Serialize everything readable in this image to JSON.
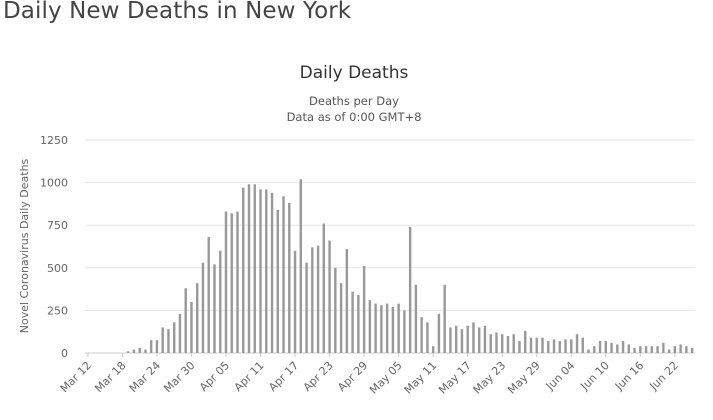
{
  "page": {
    "heading": "Daily New Deaths in New York"
  },
  "chart_data": {
    "type": "bar",
    "title": "Daily Deaths",
    "subtitle_lines": [
      "Deaths per Day",
      "Data as of 0:00 GMT+8"
    ],
    "xlabel": "",
    "ylabel": "Novel Coronavirus Daily Deaths",
    "ylim": [
      0,
      1250
    ],
    "yticks": [
      0,
      250,
      500,
      750,
      1000,
      1250
    ],
    "grid": true,
    "legend": "none",
    "bar_color": "#999999",
    "start_date": "2020-03-12",
    "tick_labels": [
      "Mar 12",
      "Mar 18",
      "Mar 24",
      "Mar 30",
      "Apr 05",
      "Apr 11",
      "Apr 17",
      "Apr 23",
      "Apr 29",
      "May 05",
      "May 11",
      "May 17",
      "May 23",
      "May 29",
      "Jun 04",
      "Jun 10",
      "Jun 16",
      "Jun 22"
    ],
    "categories": [
      "Mar 12",
      "Mar 13",
      "Mar 14",
      "Mar 15",
      "Mar 16",
      "Mar 17",
      "Mar 18",
      "Mar 19",
      "Mar 20",
      "Mar 21",
      "Mar 22",
      "Mar 23",
      "Mar 24",
      "Mar 25",
      "Mar 26",
      "Mar 27",
      "Mar 28",
      "Mar 29",
      "Mar 30",
      "Mar 31",
      "Apr 01",
      "Apr 02",
      "Apr 03",
      "Apr 04",
      "Apr 05",
      "Apr 06",
      "Apr 07",
      "Apr 08",
      "Apr 09",
      "Apr 10",
      "Apr 11",
      "Apr 12",
      "Apr 13",
      "Apr 14",
      "Apr 15",
      "Apr 16",
      "Apr 17",
      "Apr 18",
      "Apr 19",
      "Apr 20",
      "Apr 21",
      "Apr 22",
      "Apr 23",
      "Apr 24",
      "Apr 25",
      "Apr 26",
      "Apr 27",
      "Apr 28",
      "Apr 29",
      "Apr 30",
      "May 01",
      "May 02",
      "May 03",
      "May 04",
      "May 05",
      "May 06",
      "May 07",
      "May 08",
      "May 09",
      "May 10",
      "May 11",
      "May 12",
      "May 13",
      "May 14",
      "May 15",
      "May 16",
      "May 17",
      "May 18",
      "May 19",
      "May 20",
      "May 21",
      "May 22",
      "May 23",
      "May 24",
      "May 25",
      "May 26",
      "May 27",
      "May 28",
      "May 29",
      "May 30",
      "May 31",
      "Jun 01",
      "Jun 02",
      "Jun 03",
      "Jun 04",
      "Jun 05",
      "Jun 06",
      "Jun 07",
      "Jun 08",
      "Jun 09",
      "Jun 10",
      "Jun 11",
      "Jun 12",
      "Jun 13",
      "Jun 14",
      "Jun 15",
      "Jun 16",
      "Jun 17",
      "Jun 18",
      "Jun 19",
      "Jun 20",
      "Jun 21",
      "Jun 22",
      "Jun 23",
      "Jun 24",
      "Jun 25"
    ],
    "values": [
      0,
      0,
      0,
      0,
      0,
      0,
      0,
      10,
      20,
      30,
      20,
      75,
      75,
      150,
      140,
      180,
      230,
      380,
      300,
      410,
      530,
      680,
      520,
      600,
      830,
      820,
      830,
      970,
      990,
      990,
      960,
      960,
      940,
      840,
      920,
      880,
      600,
      1020,
      530,
      620,
      630,
      760,
      660,
      500,
      410,
      610,
      360,
      340,
      510,
      310,
      290,
      280,
      290,
      270,
      290,
      250,
      740,
      400,
      210,
      180,
      40,
      230,
      400,
      150,
      160,
      140,
      160,
      180,
      150,
      160,
      110,
      120,
      110,
      100,
      110,
      70,
      130,
      90,
      90,
      90,
      70,
      80,
      70,
      80,
      80,
      110,
      90,
      20,
      40,
      70,
      70,
      60,
      50,
      70,
      50,
      30,
      40,
      40,
      40,
      40,
      60,
      20,
      40,
      50,
      40,
      30
    ]
  }
}
